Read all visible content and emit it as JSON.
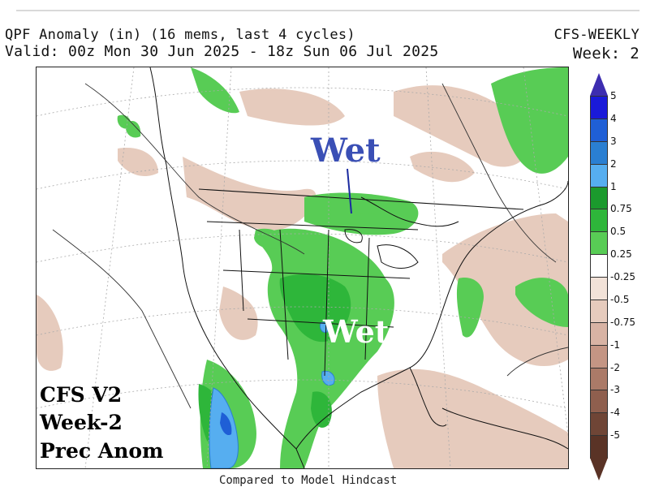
{
  "header": {
    "line1_left": "QPF Anomaly (in) (16 mems, last 4 cycles)",
    "line2_left": "Valid: 00z Mon 30 Jun 2025 - 18z Sun 06 Jul 2025",
    "line1_right": "CFS-WEEKLY",
    "line2_right": "Week: 2"
  },
  "annotations": {
    "wet_north": "Wet",
    "wet_south": "Wet"
  },
  "corner_label": {
    "line1": "CFS V2",
    "line2": "Week-2",
    "line3": "Prec Anom"
  },
  "footer": "Compared to Model Hindcast",
  "colorbar": {
    "levels": [
      {
        "label": "5",
        "color": "#1a1ad9"
      },
      {
        "label": "4",
        "color": "#1f5fd6"
      },
      {
        "label": "3",
        "color": "#2a7fd2"
      },
      {
        "label": "2",
        "color": "#56aef0"
      },
      {
        "label": "1",
        "color": "#1b9a2d"
      },
      {
        "label": "0.75",
        "color": "#2eb63a"
      },
      {
        "label": "0.5",
        "color": "#58cc55"
      },
      {
        "label": "0.25",
        "color": "#ffffff"
      },
      {
        "label": "-0.25",
        "color": "#f2e2d8"
      },
      {
        "label": "-0.5",
        "color": "#e6cbbd"
      },
      {
        "label": "-0.75",
        "color": "#d8b3a4"
      },
      {
        "label": "-1",
        "color": "#c49584"
      },
      {
        "label": "-2",
        "color": "#ab7a68"
      },
      {
        "label": "-3",
        "color": "#8f5f4e"
      },
      {
        "label": "-4",
        "color": "#6f4536"
      },
      {
        "label": "-5",
        "color": "#5a3326"
      }
    ],
    "top_arrow_color": "#3d2db0",
    "bottom_arrow_color": "#5a3326"
  },
  "colors": {
    "wet": "#58cc55",
    "wet_heavy": "#2eb63a",
    "very_wet": "#56aef0",
    "dry": "#e6cbbd",
    "annotation_north": "#3a4fb5"
  }
}
